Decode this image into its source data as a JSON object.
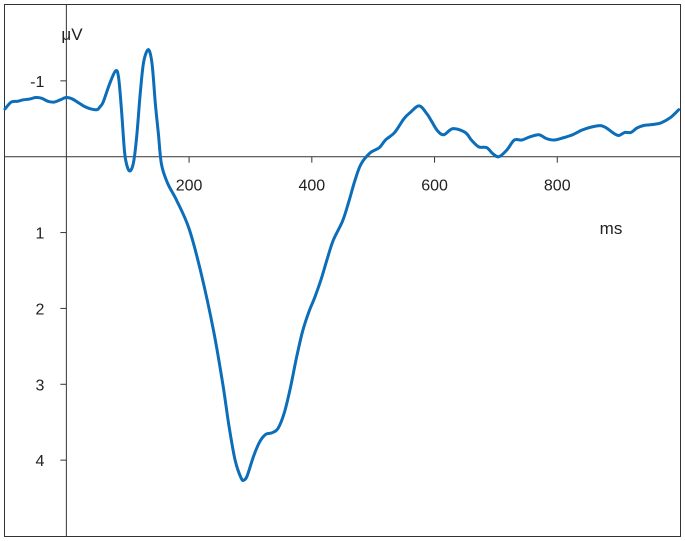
{
  "chart_data": {
    "type": "line",
    "xlabel": "ms",
    "ylabel": "μV",
    "xlim": [
      -100,
      1000
    ],
    "ylim": [
      -2,
      5
    ],
    "y_axis_inverted": true,
    "grid": false,
    "legend": "none",
    "x_ticks": [
      200,
      400,
      600,
      800
    ],
    "y_ticks": [
      -1,
      1,
      2,
      3,
      4
    ],
    "series": [
      {
        "color": "#0c6db8",
        "points": [
          [
            -100,
            -0.63
          ],
          [
            -90,
            -0.72
          ],
          [
            -80,
            -0.73
          ],
          [
            -70,
            -0.75
          ],
          [
            -60,
            -0.76
          ],
          [
            -50,
            -0.78
          ],
          [
            -40,
            -0.77
          ],
          [
            -30,
            -0.73
          ],
          [
            -20,
            -0.72
          ],
          [
            -10,
            -0.75
          ],
          [
            0,
            -0.78
          ],
          [
            10,
            -0.76
          ],
          [
            20,
            -0.71
          ],
          [
            30,
            -0.66
          ],
          [
            40,
            -0.63
          ],
          [
            50,
            -0.62
          ],
          [
            55,
            -0.66
          ],
          [
            60,
            -0.72
          ],
          [
            70,
            -0.95
          ],
          [
            80,
            -1.13
          ],
          [
            85,
            -1.05
          ],
          [
            90,
            -0.6
          ],
          [
            95,
            -0.05
          ],
          [
            100,
            0.15
          ],
          [
            105,
            0.18
          ],
          [
            110,
            0.05
          ],
          [
            115,
            -0.3
          ],
          [
            120,
            -0.8
          ],
          [
            125,
            -1.2
          ],
          [
            130,
            -1.37
          ],
          [
            135,
            -1.4
          ],
          [
            140,
            -1.2
          ],
          [
            145,
            -0.7
          ],
          [
            150,
            -0.3
          ],
          [
            155,
            0.1
          ],
          [
            165,
            0.35
          ],
          [
            180,
            0.58
          ],
          [
            200,
            0.95
          ],
          [
            220,
            1.55
          ],
          [
            240,
            2.3
          ],
          [
            255,
            3.0
          ],
          [
            265,
            3.55
          ],
          [
            275,
            4.0
          ],
          [
            285,
            4.24
          ],
          [
            290,
            4.26
          ],
          [
            295,
            4.2
          ],
          [
            305,
            3.95
          ],
          [
            315,
            3.76
          ],
          [
            325,
            3.66
          ],
          [
            335,
            3.64
          ],
          [
            345,
            3.58
          ],
          [
            355,
            3.38
          ],
          [
            365,
            3.05
          ],
          [
            375,
            2.65
          ],
          [
            385,
            2.3
          ],
          [
            395,
            2.05
          ],
          [
            405,
            1.85
          ],
          [
            415,
            1.62
          ],
          [
            425,
            1.35
          ],
          [
            435,
            1.1
          ],
          [
            450,
            0.85
          ],
          [
            460,
            0.6
          ],
          [
            470,
            0.32
          ],
          [
            480,
            0.1
          ],
          [
            495,
            -0.05
          ],
          [
            510,
            -0.12
          ],
          [
            520,
            -0.22
          ],
          [
            535,
            -0.32
          ],
          [
            550,
            -0.5
          ],
          [
            560,
            -0.58
          ],
          [
            575,
            -0.67
          ],
          [
            588,
            -0.56
          ],
          [
            595,
            -0.47
          ],
          [
            605,
            -0.34
          ],
          [
            615,
            -0.29
          ],
          [
            630,
            -0.37
          ],
          [
            650,
            -0.32
          ],
          [
            660,
            -0.22
          ],
          [
            672,
            -0.13
          ],
          [
            685,
            -0.12
          ],
          [
            695,
            -0.04
          ],
          [
            705,
            0.0
          ],
          [
            718,
            -0.09
          ],
          [
            730,
            -0.22
          ],
          [
            742,
            -0.22
          ],
          [
            755,
            -0.26
          ],
          [
            770,
            -0.29
          ],
          [
            782,
            -0.24
          ],
          [
            795,
            -0.22
          ],
          [
            810,
            -0.25
          ],
          [
            825,
            -0.29
          ],
          [
            840,
            -0.35
          ],
          [
            855,
            -0.39
          ],
          [
            870,
            -0.41
          ],
          [
            880,
            -0.38
          ],
          [
            890,
            -0.32
          ],
          [
            900,
            -0.28
          ],
          [
            910,
            -0.32
          ],
          [
            920,
            -0.32
          ],
          [
            930,
            -0.38
          ],
          [
            940,
            -0.41
          ],
          [
            950,
            -0.42
          ],
          [
            960,
            -0.43
          ],
          [
            970,
            -0.45
          ],
          [
            985,
            -0.52
          ],
          [
            998,
            -0.62
          ]
        ]
      }
    ]
  }
}
